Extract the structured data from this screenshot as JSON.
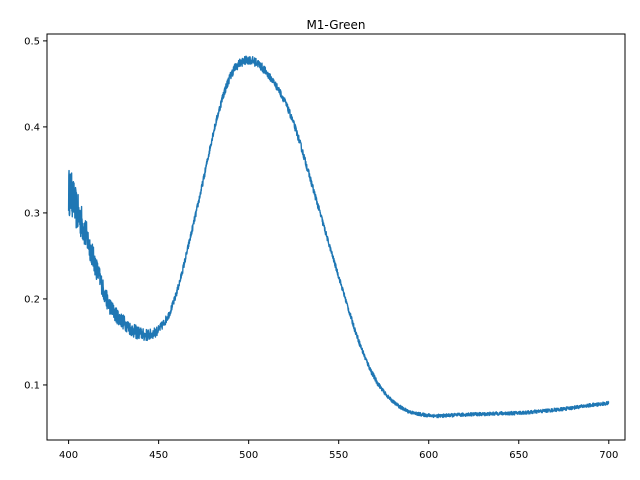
{
  "chart_data": {
    "type": "line",
    "title": "M1-Green",
    "xlabel": "",
    "ylabel": "",
    "xlim": [
      388,
      709
    ],
    "ylim": [
      0.036,
      0.508
    ],
    "xticks": [
      400,
      450,
      500,
      550,
      600,
      650,
      700
    ],
    "yticks": [
      0.1,
      0.2,
      0.3,
      0.4,
      0.5
    ],
    "grid": false,
    "legend": "none",
    "series": [
      {
        "color": "#1f77b4",
        "x": [
          400,
          402,
          404,
          406,
          408,
          410,
          412,
          414,
          416,
          418,
          420,
          422,
          424,
          426,
          428,
          430,
          432,
          434,
          436,
          438,
          440,
          442,
          444,
          446,
          448,
          450,
          453,
          456,
          459,
          462,
          465,
          468,
          471,
          474,
          477,
          480,
          483,
          486,
          489,
          492,
          495,
          498,
          500,
          502,
          505,
          508,
          511,
          514,
          517,
          520,
          523,
          526,
          529,
          532,
          535,
          538,
          541,
          544,
          547,
          550,
          553,
          556,
          559,
          562,
          565,
          568,
          571,
          574,
          577,
          580,
          583,
          586,
          589,
          592,
          595,
          598,
          601,
          604,
          607,
          610,
          615,
          620,
          625,
          630,
          635,
          640,
          645,
          650,
          655,
          660,
          665,
          670,
          675,
          680,
          685,
          690,
          695,
          700
        ],
        "y": [
          0.325,
          0.32,
          0.305,
          0.295,
          0.285,
          0.272,
          0.26,
          0.245,
          0.232,
          0.22,
          0.205,
          0.195,
          0.188,
          0.182,
          0.178,
          0.174,
          0.17,
          0.166,
          0.163,
          0.161,
          0.16,
          0.158,
          0.158,
          0.159,
          0.161,
          0.164,
          0.172,
          0.183,
          0.2,
          0.222,
          0.248,
          0.275,
          0.302,
          0.33,
          0.36,
          0.39,
          0.415,
          0.438,
          0.455,
          0.468,
          0.474,
          0.477,
          0.478,
          0.477,
          0.474,
          0.468,
          0.46,
          0.452,
          0.442,
          0.43,
          0.415,
          0.398,
          0.378,
          0.356,
          0.334,
          0.312,
          0.29,
          0.268,
          0.247,
          0.226,
          0.205,
          0.184,
          0.164,
          0.146,
          0.13,
          0.116,
          0.104,
          0.095,
          0.087,
          0.081,
          0.076,
          0.072,
          0.069,
          0.067,
          0.066,
          0.065,
          0.0645,
          0.064,
          0.064,
          0.0645,
          0.065,
          0.0655,
          0.066,
          0.066,
          0.0665,
          0.067,
          0.067,
          0.0675,
          0.068,
          0.069,
          0.07,
          0.071,
          0.072,
          0.0735,
          0.075,
          0.0765,
          0.0775,
          0.079
        ],
        "noise": [
          0.028,
          0.026,
          0.024,
          0.022,
          0.02,
          0.018,
          0.016,
          0.014,
          0.013,
          0.012,
          0.011,
          0.01,
          0.01,
          0.009,
          0.009,
          0.009,
          0.008,
          0.008,
          0.008,
          0.008,
          0.007,
          0.007,
          0.007,
          0.006,
          0.006,
          0.005,
          0.005,
          0.004,
          0.004,
          0.004,
          0.004,
          0.004,
          0.004,
          0.004,
          0.004,
          0.004,
          0.004,
          0.005,
          0.005,
          0.005,
          0.005,
          0.005,
          0.005,
          0.005,
          0.005,
          0.005,
          0.004,
          0.004,
          0.004,
          0.004,
          0.004,
          0.004,
          0.004,
          0.004,
          0.004,
          0.004,
          0.004,
          0.003,
          0.003,
          0.003,
          0.003,
          0.003,
          0.003,
          0.003,
          0.003,
          0.003,
          0.003,
          0.002,
          0.002,
          0.002,
          0.002,
          0.002,
          0.002,
          0.002,
          0.002,
          0.002,
          0.002,
          0.002,
          0.002,
          0.002,
          0.002,
          0.002,
          0.002,
          0.002,
          0.002,
          0.002,
          0.002,
          0.002,
          0.002,
          0.002,
          0.002,
          0.002,
          0.002,
          0.002,
          0.002,
          0.002,
          0.002,
          0.002
        ]
      }
    ]
  }
}
